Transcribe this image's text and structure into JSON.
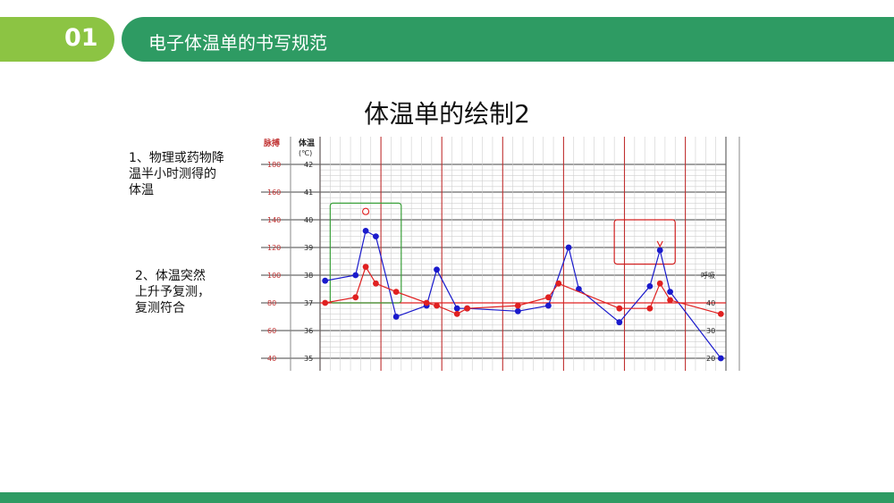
{
  "header": {
    "number": "01",
    "title": "电子体温单的书写规范"
  },
  "slide_title": "体温单的绘制2",
  "notes": [
    "1、物理或药物降\n温半小时测得的\n体温",
    "2、体温突然\n上升予复测，\n复测符合"
  ],
  "chart_data": {
    "type": "line",
    "title": "",
    "axes": {
      "pulse": {
        "label": "脉搏",
        "ticks": [
          "180",
          "160",
          "140",
          "120",
          "100",
          "80",
          "60",
          "40"
        ],
        "range": [
          40,
          180
        ]
      },
      "temperature": {
        "label": "体温",
        "unit": "(℃)",
        "ticks": [
          "42",
          "41",
          "40",
          "39",
          "38",
          "37",
          "36",
          "35"
        ],
        "range": [
          35,
          42
        ]
      },
      "respiration": {
        "label": "呼吸",
        "ticks": [
          "40",
          "30",
          "20"
        ]
      }
    },
    "series": [
      {
        "color": "#1a1acc",
        "y_unit": "temperature",
        "points": [
          {
            "x": 0,
            "y": 37.8
          },
          {
            "x": 3,
            "y": 38.0
          },
          {
            "x": 4,
            "y": 39.6
          },
          {
            "x": 5,
            "y": 39.4
          },
          {
            "x": 7,
            "y": 36.5
          },
          {
            "x": 10,
            "y": 36.9
          },
          {
            "x": 11,
            "y": 38.2
          },
          {
            "x": 13,
            "y": 36.8
          },
          {
            "x": 14,
            "y": 36.8
          },
          {
            "x": 19,
            "y": 36.7
          },
          {
            "x": 22,
            "y": 36.9
          },
          {
            "x": 24,
            "y": 39.0
          },
          {
            "x": 25,
            "y": 37.5
          },
          {
            "x": 29,
            "y": 36.3
          },
          {
            "x": 32,
            "y": 37.6
          },
          {
            "x": 33,
            "y": 38.9
          },
          {
            "x": 34,
            "y": 37.4
          },
          {
            "x": 39,
            "y": 35.0
          }
        ]
      },
      {
        "color": "#e02020",
        "y_unit": "temperature",
        "points": [
          {
            "x": 0,
            "y": 37.0
          },
          {
            "x": 3,
            "y": 37.2
          },
          {
            "x": 4,
            "y": 38.3
          },
          {
            "x": 5,
            "y": 37.7
          },
          {
            "x": 7,
            "y": 37.4
          },
          {
            "x": 10,
            "y": 37.0
          },
          {
            "x": 11,
            "y": 36.9
          },
          {
            "x": 13,
            "y": 36.6
          },
          {
            "x": 14,
            "y": 36.8
          },
          {
            "x": 19,
            "y": 36.9
          },
          {
            "x": 22,
            "y": 37.2
          },
          {
            "x": 23,
            "y": 37.7
          },
          {
            "x": 29,
            "y": 36.8
          },
          {
            "x": 32,
            "y": 36.8
          },
          {
            "x": 33,
            "y": 37.7
          },
          {
            "x": 34,
            "y": 37.1
          },
          {
            "x": 39,
            "y": 36.6
          }
        ]
      }
    ],
    "special_marks": [
      {
        "symbol": "circle",
        "x": 4,
        "y": 40.3,
        "color": "#e02020"
      },
      {
        "symbol": "v",
        "x": 33,
        "y": 39.1,
        "color": "#e02020"
      }
    ],
    "callouts": [
      {
        "x_from": 1,
        "x_to": 8,
        "y_from": 40.6,
        "y_to": 37.0,
        "color": "#3aa03a"
      },
      {
        "x_from": 29,
        "x_to": 35,
        "y_from": 40.0,
        "y_to": 38.4,
        "color": "#d02020"
      }
    ],
    "reference_line": {
      "y": 37.0,
      "color": "#e02020"
    },
    "grid": true
  }
}
